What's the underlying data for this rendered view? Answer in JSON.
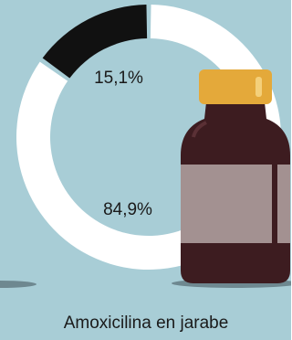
{
  "chart_data": {
    "type": "donut",
    "title": "Amoxicilina en jarabe",
    "values": [
      15.1,
      84.9
    ],
    "value_labels": [
      "15,1%",
      "84,9%"
    ],
    "colors": [
      "#111111",
      "#ffffff"
    ]
  }
}
